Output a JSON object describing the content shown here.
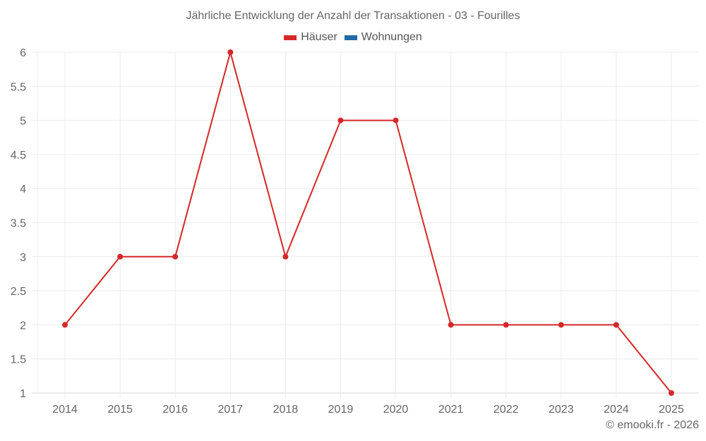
{
  "chart_data": {
    "type": "line",
    "title": "Jährliche Entwicklung der Anzahl der Transaktionen - 03 - Fourilles",
    "categories": [
      "2014",
      "2015",
      "2016",
      "2017",
      "2018",
      "2019",
      "2020",
      "2021",
      "2022",
      "2023",
      "2024",
      "2025"
    ],
    "series": [
      {
        "name": "Häuser",
        "color": "#d62728",
        "values": [
          2,
          3,
          3,
          6,
          3,
          5,
          5,
          2,
          2,
          2,
          2,
          1
        ]
      },
      {
        "name": "Wohnungen",
        "color": "#1f6aa5",
        "values": []
      }
    ],
    "xlabel": "",
    "ylabel": "",
    "ylim": [
      1,
      6
    ],
    "yticks": [
      "1",
      "1.5",
      "2",
      "2.5",
      "3",
      "3.5",
      "4",
      "4.5",
      "5",
      "5.5",
      "6"
    ],
    "grid": true,
    "legend_position": "top"
  },
  "title": "Jährliche Entwicklung der Anzahl der Transaktionen - 03 - Fourilles",
  "legend": [
    {
      "label": "Häuser",
      "color": "#d62728"
    },
    {
      "label": "Wohnungen",
      "color": "#1f6aa5"
    }
  ],
  "credit": "© emooki.fr - 2026"
}
